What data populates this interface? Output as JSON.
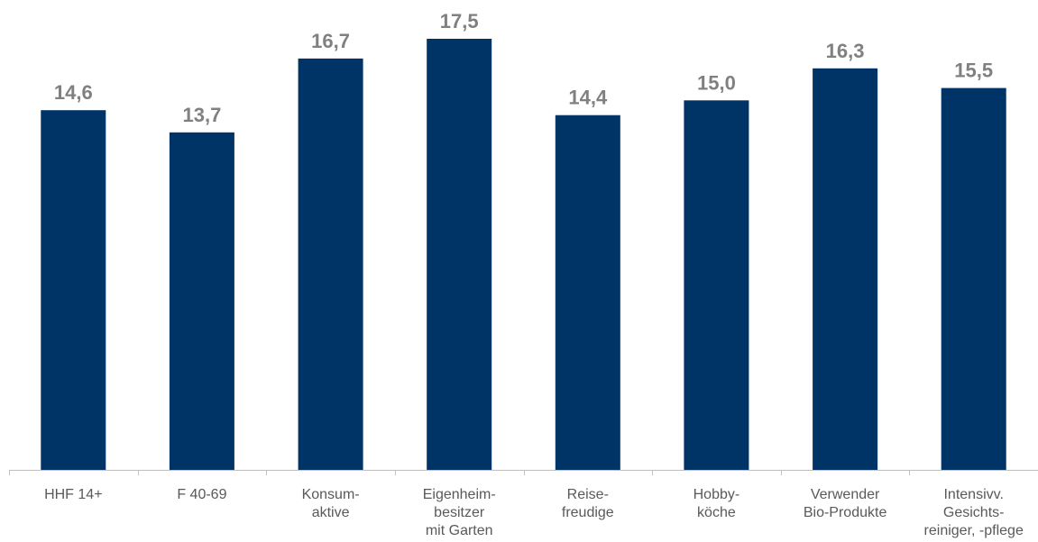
{
  "colors": {
    "bar": "#003366",
    "value_label": "#808080",
    "tick_label": "#595959",
    "axis": "#bfbfbf",
    "background": "#ffffff"
  },
  "chart_data": {
    "type": "bar",
    "categories": [
      [
        "HHF 14+"
      ],
      [
        "F 40-69"
      ],
      [
        "Konsum-",
        "aktive"
      ],
      [
        "Eigenheim-",
        "besitzer",
        "mit Garten"
      ],
      [
        "Reise-",
        "freudige"
      ],
      [
        "Hobby-",
        "köche"
      ],
      [
        "Verwender",
        "Bio-Produkte"
      ],
      [
        "Intensivv.",
        "Gesichts-",
        "reiniger, -pflege"
      ]
    ],
    "values": [
      14.6,
      13.7,
      16.7,
      17.5,
      14.4,
      15.0,
      16.3,
      15.5
    ],
    "value_labels": [
      "14,6",
      "13,7",
      "16,7",
      "17,5",
      "14,4",
      "15,0",
      "16,3",
      "15,5"
    ],
    "title": "",
    "xlabel": "",
    "ylabel": "",
    "ylim": [
      0,
      17.5
    ],
    "grid": false,
    "legend": "none"
  }
}
